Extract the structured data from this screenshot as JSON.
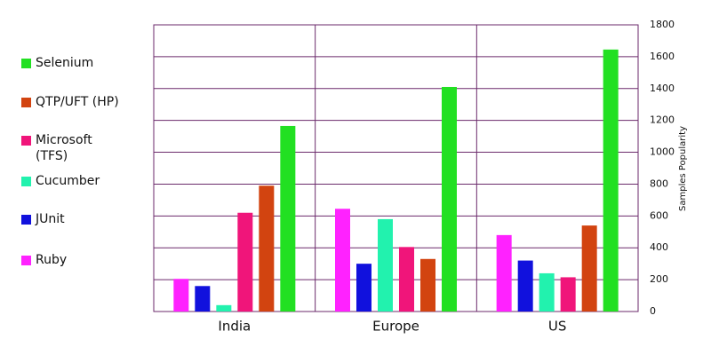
{
  "chart_data": {
    "type": "bar",
    "categories": [
      "India",
      "Europe",
      "US"
    ],
    "series": [
      {
        "name": "Ruby",
        "color": "#ff22ff",
        "values": [
          205,
          645,
          480
        ]
      },
      {
        "name": "JUnit",
        "color": "#1111dd",
        "values": [
          160,
          300,
          320
        ]
      },
      {
        "name": "Cucumber",
        "color": "#22f2ae",
        "values": [
          40,
          580,
          240
        ]
      },
      {
        "name": "Microsoft (TFS)",
        "color": "#f0157a",
        "values": [
          620,
          405,
          215
        ]
      },
      {
        "name": "QTP/UFT (HP)",
        "color": "#d24410",
        "values": [
          790,
          330,
          540
        ]
      },
      {
        "name": "Selenium",
        "color": "#22e022",
        "values": [
          1165,
          1410,
          1645
        ]
      }
    ],
    "y_label": "Samples Popularity",
    "ylim": [
      0,
      1800
    ],
    "yticks": [
      0,
      200,
      400,
      600,
      800,
      1000,
      1200,
      1400,
      1600,
      1800
    ],
    "grid": true
  }
}
